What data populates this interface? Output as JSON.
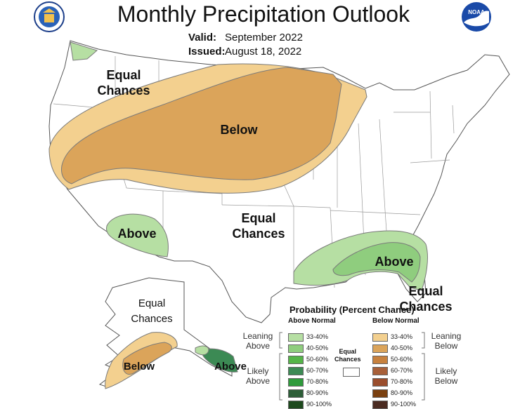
{
  "title": "Monthly Precipitation Outlook",
  "valid_label": "Valid:",
  "valid_value": "September 2022",
  "issued_label": "Issued:",
  "issued_value": "August 18, 2022",
  "logos": {
    "left": "department-of-commerce-seal",
    "right": "noaa-logo",
    "right_text": "NOAA"
  },
  "map_labels": {
    "west_equal": "Equal\nChances",
    "below_main": "Below",
    "above_southwest": "Above",
    "central_equal": "Equal\nChances",
    "above_southeast": "Above",
    "florida_equal": "Equal\nChances",
    "alaska_equal": "Equal\nChances",
    "alaska_below": "Below",
    "alaska_above": "Above"
  },
  "legend": {
    "title": "Probability (Percent Chance)",
    "above_header": "Above Normal",
    "below_header": "Below Normal",
    "leaning_above": "Leaning\nAbove",
    "likely_above": "Likely\nAbove",
    "leaning_below": "Leaning\nBelow",
    "likely_below": "Likely\nBelow",
    "equal_chances": "Equal\nChances",
    "above_rows": [
      {
        "range": "33-40%",
        "color": "#b6dfa3"
      },
      {
        "range": "40-50%",
        "color": "#8fcd7e"
      },
      {
        "range": "50-60%",
        "color": "#55b548"
      },
      {
        "range": "60-70%",
        "color": "#3c8a54"
      },
      {
        "range": "70-80%",
        "color": "#2f9a3c"
      },
      {
        "range": "80-90%",
        "color": "#2d5e38"
      },
      {
        "range": "90-100%",
        "color": "#1e4a1e"
      }
    ],
    "below_rows": [
      {
        "range": "33-40%",
        "color": "#f3d08f"
      },
      {
        "range": "40-50%",
        "color": "#dba45a"
      },
      {
        "range": "50-60%",
        "color": "#c7813e"
      },
      {
        "range": "60-70%",
        "color": "#a8603a"
      },
      {
        "range": "70-80%",
        "color": "#9a4e2e"
      },
      {
        "range": "80-90%",
        "color": "#7a4010"
      },
      {
        "range": "90-100%",
        "color": "#4b2c22"
      }
    ]
  },
  "colors": {
    "below_leaning": "#f3d08f",
    "below_40_50": "#dba45a",
    "above_leaning": "#b6dfa3",
    "above_40_50": "#8fcd7e",
    "alaska_above_dark": "#3c8a54"
  }
}
